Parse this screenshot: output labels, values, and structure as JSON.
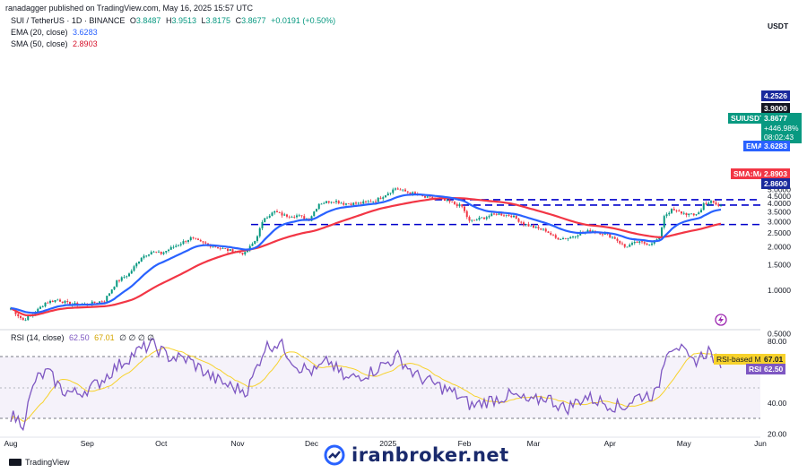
{
  "header": {
    "published": "ranadagger published on TradingView.com, May 16, 2025 15:57 UTC",
    "symbol": "SUI / TetherUS · 1D · BINANCE",
    "ohlc": [
      "O",
      "3.8487",
      "H",
      "3.9513",
      "L",
      "3.8175",
      "C",
      "3.8677",
      "+0.0191 (+0.50%)"
    ],
    "ema_label": "EMA (20, close)",
    "ema_value": "3.6283",
    "sma_label": "SMA (50, close)",
    "sma_value": "2.8903",
    "rsi_label": "RSI (14, close)",
    "rsi_value": "62.50",
    "rsi_ma_value": "67.01",
    "rsi_extra": "∅ ∅ ∅ ∅"
  },
  "footer": {
    "brand": "TradingView",
    "watermark": "iranbroker.net"
  },
  "colors": {
    "up": "#089981",
    "down": "#f23645",
    "ema": "#2962ff",
    "sma": "#f23645",
    "rsi": "#7e57c2",
    "rsi_ma": "#f7d22b",
    "level": "#0000cc"
  },
  "chart_data": [
    {
      "type": "candlestick",
      "title": "SUI / TetherUS · 1D · BINANCE",
      "currency": "USDT",
      "y_axis": {
        "scale": "log",
        "ticks": [
          "5.0000",
          "4.5000",
          "4.0000",
          "3.5000",
          "3.0000",
          "2.5000",
          "2.0000",
          "1.5000",
          "1.0000",
          "0.5000"
        ]
      },
      "x_axis": {
        "ticks": [
          "Aug",
          "Sep",
          "Oct",
          "Nov",
          "Dec",
          "2025",
          "Feb",
          "Mar",
          "Apr",
          "May",
          "Jun"
        ]
      },
      "close_path": [
        {
          "date": "2024-08-01",
          "close": 0.75
        },
        {
          "date": "2024-08-06",
          "close": 0.62
        },
        {
          "date": "2024-08-10",
          "close": 0.68
        },
        {
          "date": "2024-08-15",
          "close": 0.82
        },
        {
          "date": "2024-08-20",
          "close": 0.86
        },
        {
          "date": "2024-08-25",
          "close": 0.8
        },
        {
          "date": "2024-09-01",
          "close": 0.8
        },
        {
          "date": "2024-09-08",
          "close": 0.85
        },
        {
          "date": "2024-09-13",
          "close": 1.15
        },
        {
          "date": "2024-09-18",
          "close": 1.3
        },
        {
          "date": "2024-09-23",
          "close": 1.7
        },
        {
          "date": "2024-09-27",
          "close": 1.85
        },
        {
          "date": "2024-10-01",
          "close": 1.8
        },
        {
          "date": "2024-10-06",
          "close": 2.0
        },
        {
          "date": "2024-10-13",
          "close": 2.3
        },
        {
          "date": "2024-10-17",
          "close": 2.15
        },
        {
          "date": "2024-10-23",
          "close": 2.0
        },
        {
          "date": "2024-10-28",
          "close": 1.9
        },
        {
          "date": "2024-11-04",
          "close": 1.8
        },
        {
          "date": "2024-11-08",
          "close": 2.2
        },
        {
          "date": "2024-11-12",
          "close": 3.2
        },
        {
          "date": "2024-11-16",
          "close": 3.5
        },
        {
          "date": "2024-11-20",
          "close": 3.3
        },
        {
          "date": "2024-11-25",
          "close": 3.3
        },
        {
          "date": "2024-11-30",
          "close": 3.1
        },
        {
          "date": "2024-12-04",
          "close": 4.0
        },
        {
          "date": "2024-12-10",
          "close": 4.2
        },
        {
          "date": "2024-12-14",
          "close": 4.0
        },
        {
          "date": "2024-12-20",
          "close": 4.0
        },
        {
          "date": "2024-12-27",
          "close": 4.2
        },
        {
          "date": "2025-01-04",
          "close": 5.1
        },
        {
          "date": "2025-01-07",
          "close": 4.9
        },
        {
          "date": "2025-01-11",
          "close": 4.7
        },
        {
          "date": "2025-01-16",
          "close": 4.4
        },
        {
          "date": "2025-01-21",
          "close": 4.3
        },
        {
          "date": "2025-01-26",
          "close": 4.1
        },
        {
          "date": "2025-01-31",
          "close": 3.8
        },
        {
          "date": "2025-02-03",
          "close": 3.0
        },
        {
          "date": "2025-02-09",
          "close": 3.2
        },
        {
          "date": "2025-02-14",
          "close": 3.4
        },
        {
          "date": "2025-02-20",
          "close": 3.3
        },
        {
          "date": "2025-02-25",
          "close": 2.9
        },
        {
          "date": "2025-03-02",
          "close": 2.7
        },
        {
          "date": "2025-03-06",
          "close": 2.6
        },
        {
          "date": "2025-03-10",
          "close": 2.3
        },
        {
          "date": "2025-03-15",
          "close": 2.3
        },
        {
          "date": "2025-03-20",
          "close": 2.5
        },
        {
          "date": "2025-03-25",
          "close": 2.6
        },
        {
          "date": "2025-03-30",
          "close": 2.45
        },
        {
          "date": "2025-04-03",
          "close": 2.3
        },
        {
          "date": "2025-04-07",
          "close": 2.0
        },
        {
          "date": "2025-04-12",
          "close": 2.15
        },
        {
          "date": "2025-04-17",
          "close": 2.1
        },
        {
          "date": "2025-04-21",
          "close": 2.3
        },
        {
          "date": "2025-04-23",
          "close": 3.3
        },
        {
          "date": "2025-04-26",
          "close": 3.6
        },
        {
          "date": "2025-04-30",
          "close": 3.45
        },
        {
          "date": "2025-05-05",
          "close": 3.3
        },
        {
          "date": "2025-05-08",
          "close": 3.6
        },
        {
          "date": "2025-05-09",
          "close": 4.0
        },
        {
          "date": "2025-05-12",
          "close": 4.1
        },
        {
          "date": "2025-05-15",
          "close": 3.85
        },
        {
          "date": "2025-05-16",
          "close": 3.8677
        }
      ],
      "series": [
        {
          "name": "EMA (20, close)",
          "last": 3.6283
        },
        {
          "name": "SMA (50, close)",
          "last": 2.8903
        }
      ],
      "horizontal_levels": [
        4.2526,
        3.9,
        2.86
      ],
      "price_labels": [
        {
          "text": "USDT"
        },
        {
          "text": "4.2526"
        },
        {
          "text": "3.9000"
        },
        {
          "text": "SUIUSDT",
          "value": "3.8677",
          "change": "+446.98%",
          "countdown": "08:02:43"
        },
        {
          "text": "EMA",
          "value": "3.6283"
        },
        {
          "text": "SMA:MA",
          "value": "2.8903"
        },
        {
          "text": "2.8600"
        }
      ]
    },
    {
      "type": "line",
      "title": "RSI (14, close)",
      "y_axis": {
        "ticks": [
          "80.00",
          "40.00",
          "20.00"
        ],
        "bands": [
          70,
          30
        ]
      },
      "rsi_path": [
        {
          "date": "2024-08-01",
          "rsi": 32
        },
        {
          "date": "2024-08-06",
          "rsi": 27
        },
        {
          "date": "2024-08-11",
          "rsi": 55
        },
        {
          "date": "2024-08-16",
          "rsi": 60
        },
        {
          "date": "2024-08-22",
          "rsi": 48
        },
        {
          "date": "2024-08-28",
          "rsi": 46
        },
        {
          "date": "2024-09-05",
          "rsi": 52
        },
        {
          "date": "2024-09-12",
          "rsi": 62
        },
        {
          "date": "2024-09-20",
          "rsi": 72
        },
        {
          "date": "2024-09-27",
          "rsi": 78
        },
        {
          "date": "2024-10-04",
          "rsi": 70
        },
        {
          "date": "2024-10-12",
          "rsi": 68
        },
        {
          "date": "2024-10-22",
          "rsi": 56
        },
        {
          "date": "2024-10-30",
          "rsi": 50
        },
        {
          "date": "2024-11-05",
          "rsi": 48
        },
        {
          "date": "2024-11-12",
          "rsi": 76
        },
        {
          "date": "2024-11-18",
          "rsi": 79
        },
        {
          "date": "2024-11-25",
          "rsi": 64
        },
        {
          "date": "2024-12-02",
          "rsi": 60
        },
        {
          "date": "2024-12-08",
          "rsi": 67
        },
        {
          "date": "2024-12-15",
          "rsi": 55
        },
        {
          "date": "2024-12-25",
          "rsi": 60
        },
        {
          "date": "2025-01-05",
          "rsi": 70
        },
        {
          "date": "2025-01-12",
          "rsi": 58
        },
        {
          "date": "2025-01-20",
          "rsi": 52
        },
        {
          "date": "2025-01-28",
          "rsi": 46
        },
        {
          "date": "2025-02-04",
          "rsi": 38
        },
        {
          "date": "2025-02-12",
          "rsi": 42
        },
        {
          "date": "2025-02-20",
          "rsi": 45
        },
        {
          "date": "2025-02-28",
          "rsi": 40
        },
        {
          "date": "2025-03-06",
          "rsi": 44
        },
        {
          "date": "2025-03-14",
          "rsi": 36
        },
        {
          "date": "2025-03-22",
          "rsi": 44
        },
        {
          "date": "2025-03-30",
          "rsi": 40
        },
        {
          "date": "2025-04-06",
          "rsi": 37
        },
        {
          "date": "2025-04-12",
          "rsi": 44
        },
        {
          "date": "2025-04-20",
          "rsi": 46
        },
        {
          "date": "2025-04-24",
          "rsi": 75
        },
        {
          "date": "2025-04-28",
          "rsi": 78
        },
        {
          "date": "2025-05-04",
          "rsi": 66
        },
        {
          "date": "2025-05-08",
          "rsi": 70
        },
        {
          "date": "2025-05-11",
          "rsi": 74
        },
        {
          "date": "2025-05-16",
          "rsi": 62.5
        }
      ],
      "series": [
        {
          "name": "RSI",
          "last": 62.5
        },
        {
          "name": "RSI-based MA",
          "last": 67.01
        }
      ],
      "value_labels": [
        {
          "text": "RSI-based MA",
          "value": "67.01"
        },
        {
          "text": "RSI",
          "value": "62.50"
        }
      ]
    }
  ]
}
